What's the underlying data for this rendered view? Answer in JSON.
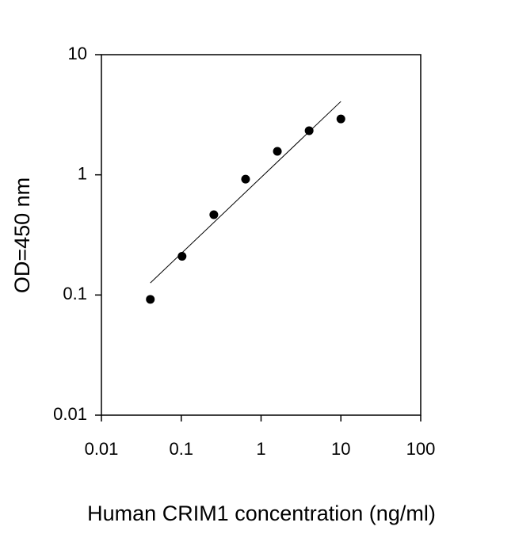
{
  "chart_data": {
    "type": "scatter",
    "xlabel": "Human CRIM1 concentration (ng/ml)",
    "ylabel": "OD=450 nm",
    "x": [
      0.041,
      0.1024,
      0.256,
      0.64,
      1.6,
      4,
      10
    ],
    "series": [
      {
        "color": "#000000",
        "values": [
          0.092,
          0.21,
          0.466,
          0.92,
          1.57,
          2.33,
          2.92
        ]
      }
    ],
    "trendline": {
      "color": "#000000",
      "x": [
        0.041,
        10
      ],
      "y": [
        0.126,
        4.08
      ]
    },
    "xscale": "log",
    "yscale": "log",
    "xlim": [
      0.01,
      100
    ],
    "ylim": [
      0.01,
      10
    ],
    "xticks": [
      0.01,
      0.1,
      1,
      10,
      100
    ],
    "yticks": [
      0.01,
      0.1,
      1,
      10
    ]
  }
}
